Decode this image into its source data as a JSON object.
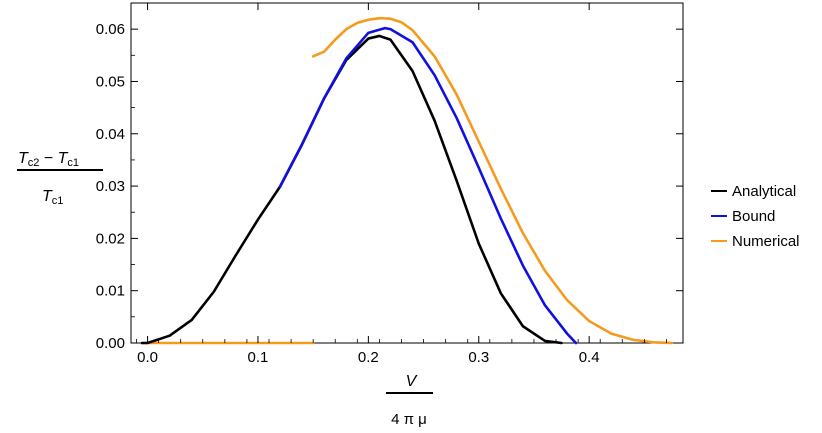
{
  "chart_data": {
    "type": "line",
    "title": "",
    "xlabel": "V / 4 π μ",
    "xlabel_numerator": "V",
    "xlabel_denominator": "4 π μ",
    "ylabel": "(T_c2 − T_c1) / T_c1",
    "ylabel_numerator_a": "T",
    "ylabel_numerator_a_sub": "c2",
    "ylabel_numerator_minus": " − ",
    "ylabel_numerator_b": "T",
    "ylabel_numerator_b_sub": "c1",
    "ylabel_denominator": "T",
    "ylabel_denominator_sub": "c1",
    "xlim": [
      -0.015,
      0.485
    ],
    "ylim": [
      0,
      0.065
    ],
    "x_ticks": [
      0.0,
      0.1,
      0.2,
      0.3,
      0.4
    ],
    "x_tick_labels": [
      "0.0",
      "0.1",
      "0.2",
      "0.3",
      "0.4"
    ],
    "y_ticks": [
      0.0,
      0.01,
      0.02,
      0.03,
      0.04,
      0.05,
      0.06
    ],
    "y_tick_labels": [
      "0.00",
      "0.01",
      "0.02",
      "0.03",
      "0.04",
      "0.05",
      "0.06"
    ],
    "grid": false,
    "legend_position": "right",
    "series": [
      {
        "name": "Analytical",
        "color": "#000000",
        "x": [
          -0.005,
          0.0,
          0.02,
          0.04,
          0.06,
          0.08,
          0.1,
          0.12,
          0.14,
          0.16,
          0.18,
          0.2,
          0.21,
          0.22,
          0.24,
          0.26,
          0.28,
          0.3,
          0.32,
          0.34,
          0.36,
          0.375
        ],
        "y": [
          0.0,
          0.0,
          0.0014,
          0.0044,
          0.0098,
          0.0168,
          0.0236,
          0.0299,
          0.038,
          0.0468,
          0.0541,
          0.0582,
          0.0587,
          0.058,
          0.052,
          0.0425,
          0.031,
          0.019,
          0.0095,
          0.0032,
          0.0004,
          0.0
        ]
      },
      {
        "name": "Bound",
        "color": "#1010e0",
        "x": [
          0.12,
          0.14,
          0.16,
          0.18,
          0.2,
          0.215,
          0.22,
          0.24,
          0.26,
          0.28,
          0.3,
          0.32,
          0.34,
          0.36,
          0.38,
          0.388
        ],
        "y": [
          0.0299,
          0.038,
          0.0468,
          0.0544,
          0.0593,
          0.0602,
          0.06,
          0.0575,
          0.0512,
          0.043,
          0.0335,
          0.0238,
          0.0148,
          0.0072,
          0.0018,
          0.0
        ]
      },
      {
        "name": "Numerical",
        "color": "#f59a1f",
        "x": [
          0.15,
          0.16,
          0.17,
          0.18,
          0.19,
          0.2,
          0.21,
          0.22,
          0.23,
          0.24,
          0.26,
          0.28,
          0.3,
          0.32,
          0.34,
          0.36,
          0.38,
          0.4,
          0.42,
          0.44,
          0.46,
          0.475
        ],
        "y": [
          0.0548,
          0.0557,
          0.058,
          0.06,
          0.0612,
          0.0618,
          0.0621,
          0.062,
          0.0613,
          0.0598,
          0.0548,
          0.0475,
          0.0385,
          0.0295,
          0.021,
          0.0138,
          0.0082,
          0.0042,
          0.0018,
          0.0006,
          0.0001,
          0.0
        ]
      },
      {
        "name": "",
        "color": "#f59a1f",
        "x": [
          -0.005,
          0.15
        ],
        "y": [
          0.0,
          0.0
        ]
      }
    ]
  }
}
